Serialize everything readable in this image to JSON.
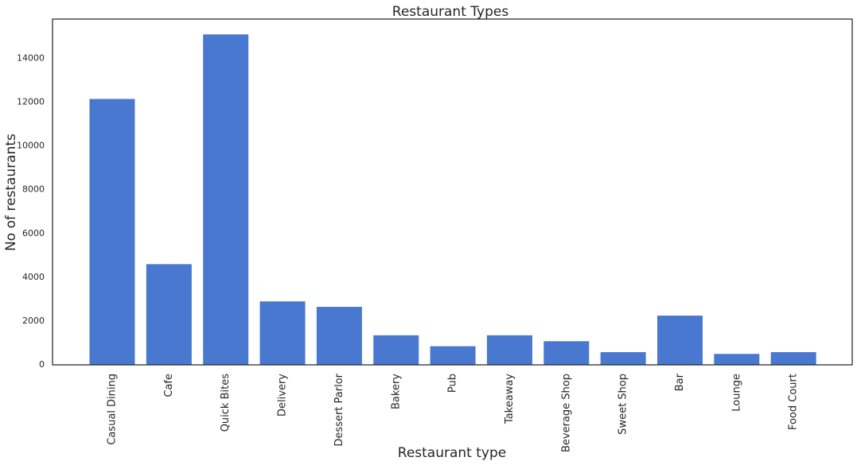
{
  "chart_data": {
    "type": "bar",
    "title": "Restaurant Types",
    "xlabel": "Restaurant type",
    "ylabel": "No of restaurants",
    "categories": [
      "Casual Dining",
      "Cafe",
      "Quick Bites",
      "Delivery",
      "Dessert Parlor",
      "Bakery",
      "Pub",
      "Takeaway",
      "Beverage Shop",
      "Sweet Shop",
      "Bar",
      "Lounge",
      "Food Court"
    ],
    "values": [
      12150,
      4600,
      15100,
      2900,
      2650,
      1350,
      850,
      1350,
      1080,
      580,
      2250,
      500,
      580
    ],
    "yticks": [
      0,
      2000,
      4000,
      6000,
      8000,
      10000,
      12000,
      14000
    ],
    "ylim": [
      0,
      15800
    ],
    "bar_color": "#4878cf",
    "grid": false
  }
}
